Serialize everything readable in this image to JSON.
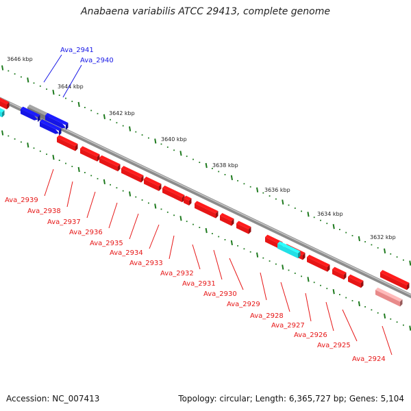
{
  "title": "Anabaena variabilis ATCC 29413, complete genome",
  "footer": {
    "accession": "Accession: NC_007413",
    "summary": "Topology: circular; Length: 6,365,727 bp; Genes: 5,104"
  },
  "scale_ticks": [
    "3646 kbp",
    "3644 kbp",
    "3642 kbp",
    "3640 kbp",
    "3638 kbp",
    "3636 kbp",
    "3634 kbp",
    "3632 kbp"
  ],
  "colors": {
    "forward_gene": "#1515e6",
    "reverse_gene": "#e61515",
    "pseudogene": "#7a7a7a",
    "rna": "#22e0e6",
    "faded": "#e88a8a",
    "tick": "#1e7a1e",
    "backbone": "#8a8a8a"
  },
  "upper_labels": [
    "Ava_2941",
    "Ava_2940"
  ],
  "lower_labels": [
    "Ava_2939",
    "Ava_2938",
    "Ava_2937",
    "Ava_2936",
    "Ava_2935",
    "Ava_2934",
    "Ava_2933",
    "Ava_2932",
    "Ava_2931",
    "Ava_2930",
    "Ava_2929",
    "Ava_2928",
    "Ava_2927",
    "Ava_2926",
    "Ava_2925",
    "Ava_2924"
  ]
}
